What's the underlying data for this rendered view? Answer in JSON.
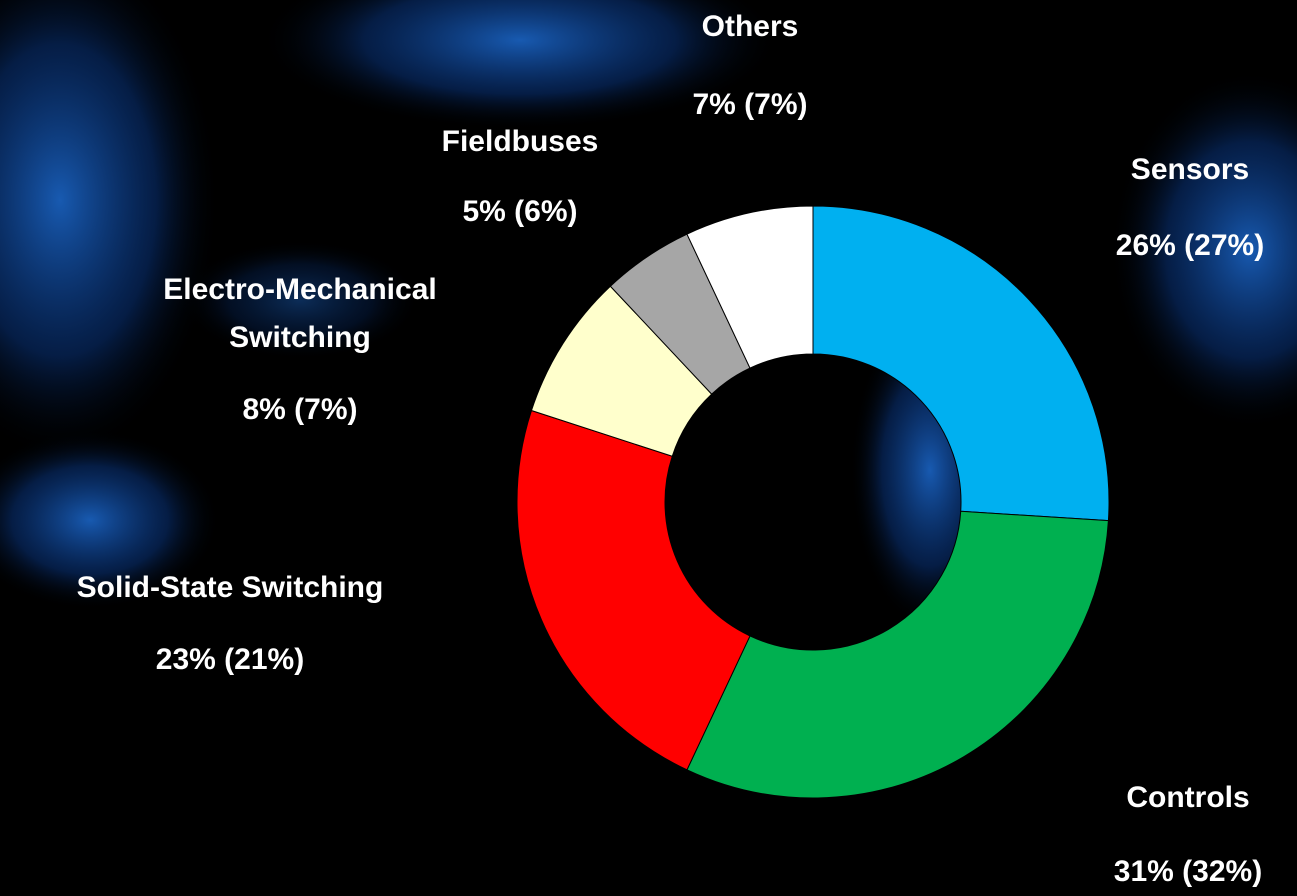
{
  "chart_data": {
    "type": "donut",
    "categories": [
      "Sensors",
      "Controls",
      "Solid-State Switching",
      "Electro-Mechanical Switching",
      "Fieldbuses",
      "Others"
    ],
    "values": [
      26,
      31,
      23,
      8,
      5,
      7
    ],
    "value_labels": [
      "26% (27%)",
      "31% (32%)",
      "23% (21%)",
      "8% (7%)",
      "5% (6%)",
      "7% (7%)"
    ],
    "colors": [
      "#00b0f0",
      "#00b050",
      "#ff0000",
      "#ffffcc",
      "#a6a6a6",
      "#ffffff"
    ]
  }
}
